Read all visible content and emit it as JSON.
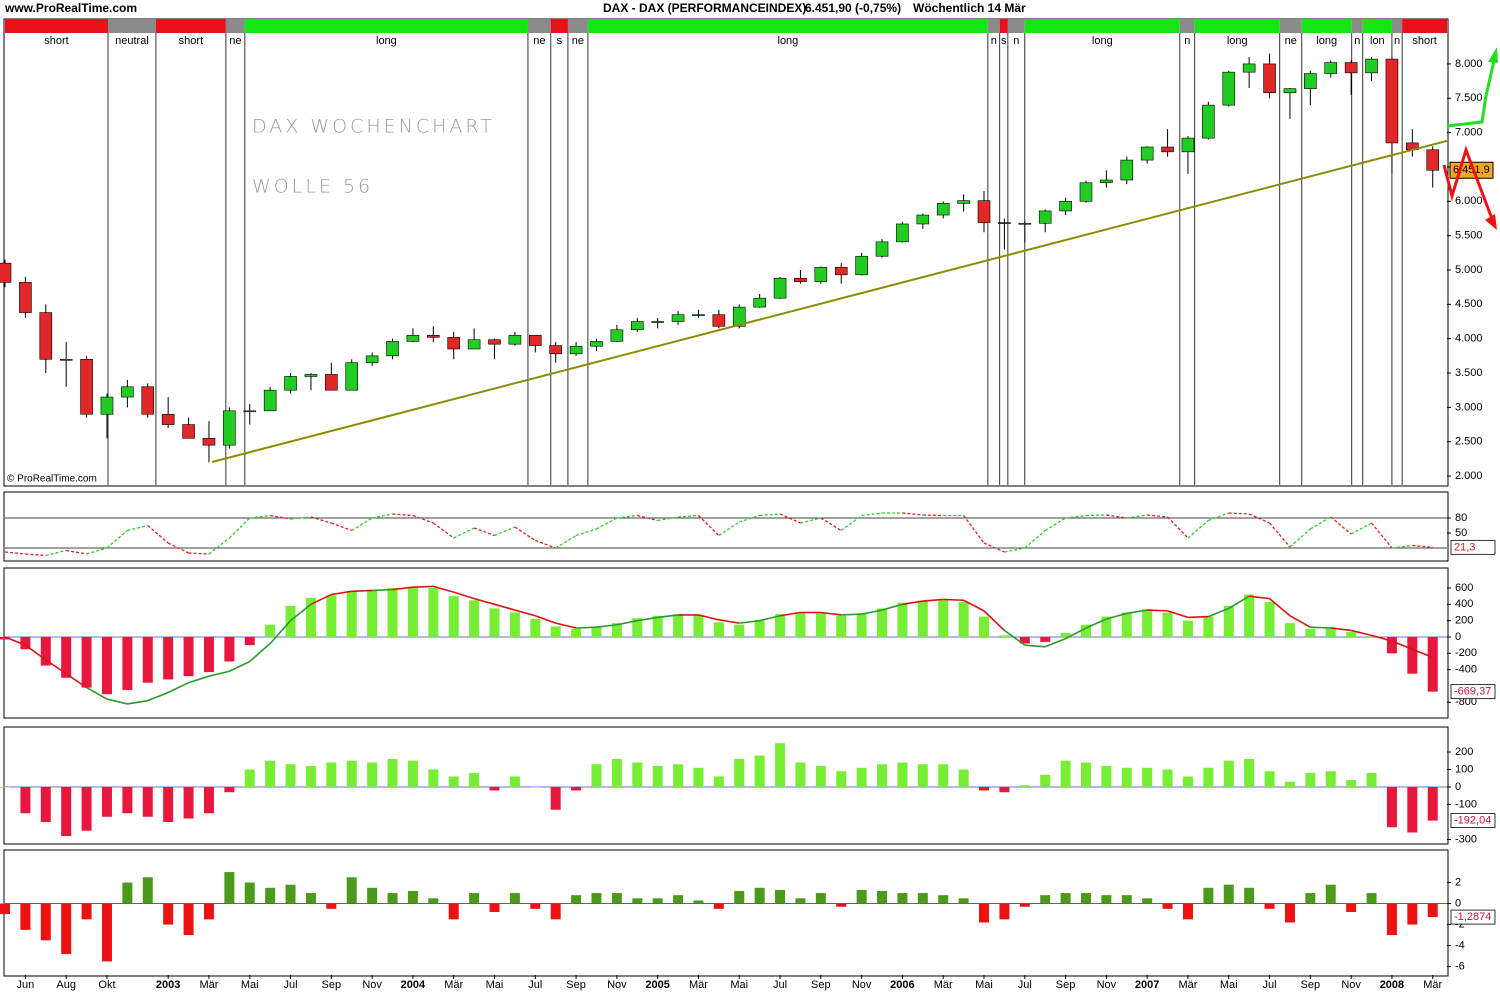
{
  "chart_data": [
    {
      "type": "candlestick",
      "source": "www.ProRealTime.com",
      "title": "DAX - DAX (PERFORMANCEINDEX)",
      "subtitle": "6.451,90 (-0,75%)",
      "period": "Wöchentlich  14 Mär",
      "watermark": "© ProRealTime.com",
      "annotations": [
        "DAX WOCHENCHART",
        "WOLLE 56"
      ],
      "up_color": "#22cc22",
      "down_color": "#e02828",
      "xlim": [
        0,
        70.7
      ],
      "xticks": [
        {
          "value": 1,
          "label": "Jun"
        },
        {
          "value": 3,
          "label": "Aug"
        },
        {
          "value": 5,
          "label": "Okt"
        },
        {
          "value": 8,
          "label": "2003"
        },
        {
          "value": 10,
          "label": "Mär"
        },
        {
          "value": 12,
          "label": "Mai"
        },
        {
          "value": 14,
          "label": "Jul"
        },
        {
          "value": 16,
          "label": "Sep"
        },
        {
          "value": 18,
          "label": "Nov"
        },
        {
          "value": 20,
          "label": "2004"
        },
        {
          "value": 22,
          "label": "Mär"
        },
        {
          "value": 24,
          "label": "Mai"
        },
        {
          "value": 26,
          "label": "Jul"
        },
        {
          "value": 28,
          "label": "Sep"
        },
        {
          "value": 30,
          "label": "Nov"
        },
        {
          "value": 32,
          "label": "2005"
        },
        {
          "value": 34,
          "label": "Mär"
        },
        {
          "value": 36,
          "label": "Mai"
        },
        {
          "value": 38,
          "label": "Jul"
        },
        {
          "value": 40,
          "label": "Sep"
        },
        {
          "value": 42,
          "label": "Nov"
        },
        {
          "value": 44,
          "label": "2006"
        },
        {
          "value": 46,
          "label": "Mär"
        },
        {
          "value": 48,
          "label": "Mai"
        },
        {
          "value": 50,
          "label": "Jul"
        },
        {
          "value": 52,
          "label": "Sep"
        },
        {
          "value": 54,
          "label": "Nov"
        },
        {
          "value": 56,
          "label": "2007"
        },
        {
          "value": 58,
          "label": "Mär"
        },
        {
          "value": 60,
          "label": "Mai"
        },
        {
          "value": 62,
          "label": "Jul"
        },
        {
          "value": 64,
          "label": "Sep"
        },
        {
          "value": 66,
          "label": "Nov"
        },
        {
          "value": 68,
          "label": "2008"
        },
        {
          "value": 70,
          "label": "Mär"
        }
      ],
      "ylim": [
        1870,
        8450
      ],
      "yticks": [
        {
          "value": 2000,
          "label": "2.000"
        },
        {
          "value": 2500,
          "label": "2.500"
        },
        {
          "value": 3000,
          "label": "3.000"
        },
        {
          "value": 3500,
          "label": "3.500"
        },
        {
          "value": 4000,
          "label": "4.000"
        },
        {
          "value": 4500,
          "label": "4.500"
        },
        {
          "value": 5000,
          "label": "5.000"
        },
        {
          "value": 5500,
          "label": "5.500"
        },
        {
          "value": 6000,
          "label": "6.000"
        },
        {
          "value": 6500,
          "label": "6.500"
        },
        {
          "value": 7000,
          "label": "7.000"
        },
        {
          "value": 7500,
          "label": "7.500"
        },
        {
          "value": 8000,
          "label": "8.000"
        }
      ],
      "last_value": {
        "value": 6451.9,
        "label": "6.451,9"
      },
      "trendline": {
        "x": [
          10.15,
          70.7
        ],
        "y": [
          2205,
          6880
        ],
        "color": "#8c8c00"
      },
      "regimes": [
        {
          "label": "short",
          "start": 0,
          "color": "#e8101a"
        },
        {
          "label": "neutral",
          "start": 5.05,
          "color": "#8a8a8a"
        },
        {
          "label": "short",
          "start": 7.4,
          "color": "#e8101a"
        },
        {
          "label": "ne",
          "start": 10.83,
          "color": "#8a8a8a"
        },
        {
          "label": "long",
          "start": 11.76,
          "color": "#14e614"
        },
        {
          "label": "ne",
          "start": 25.64,
          "color": "#8a8a8a"
        },
        {
          "label": "s",
          "start": 26.76,
          "color": "#e8101a"
        },
        {
          "label": "ne",
          "start": 27.6,
          "color": "#8a8a8a"
        },
        {
          "label": "long",
          "start": 28.58,
          "color": "#14e614"
        },
        {
          "label": "n",
          "start": 48.19,
          "color": "#8a8a8a"
        },
        {
          "label": "s",
          "start": 48.77,
          "color": "#e8101a"
        },
        {
          "label": "n",
          "start": 49.17,
          "color": "#8a8a8a"
        },
        {
          "label": "long",
          "start": 50,
          "color": "#14e614"
        },
        {
          "label": "n",
          "start": 57.6,
          "color": "#8a8a8a"
        },
        {
          "label": "long",
          "start": 58.33,
          "color": "#14e614"
        },
        {
          "label": "ne",
          "start": 62.5,
          "color": "#8a8a8a"
        },
        {
          "label": "long",
          "start": 63.58,
          "color": "#14e614"
        },
        {
          "label": "n",
          "start": 66.03,
          "color": "#8a8a8a"
        },
        {
          "label": "lon",
          "start": 66.57,
          "color": "#14e614"
        },
        {
          "label": "n",
          "start": 68,
          "color": "#8a8a8a"
        },
        {
          "label": "short",
          "start": 68.5,
          "color": "#e8101a"
        }
      ],
      "open": [
        5100,
        4820,
        4380,
        3700,
        3700,
        2900,
        3150,
        3300,
        2900,
        2750,
        2550,
        2450,
        2950,
        2950,
        3250,
        3450,
        3480,
        3250,
        3650,
        3750,
        3960,
        4050,
        4020,
        3850,
        3985,
        3920,
        4050,
        3900,
        3780,
        3890,
        3960,
        4130,
        4250,
        4250,
        4350,
        4350,
        4180,
        4460,
        4590,
        4880,
        4830,
        5040,
        4930,
        5200,
        5410,
        5670,
        5800,
        5970,
        6010,
        5690,
        5680,
        5680,
        5860,
        6000,
        6270,
        6310,
        6600,
        6790,
        6720,
        6920,
        7400,
        7880,
        8000,
        7580,
        7640,
        7860,
        8020,
        7870,
        8070,
        6850,
        6750
      ],
      "high": [
        5150,
        4900,
        4500,
        3950,
        3750,
        3200,
        3400,
        3350,
        3150,
        2850,
        2800,
        3000,
        3050,
        3300,
        3500,
        3500,
        3650,
        3700,
        3800,
        4000,
        4150,
        4180,
        4100,
        4150,
        4000,
        4100,
        4050,
        3950,
        3950,
        4000,
        4200,
        4300,
        4300,
        4400,
        4420,
        4420,
        4500,
        4650,
        4900,
        5000,
        5050,
        5100,
        5250,
        5450,
        5700,
        5820,
        6000,
        6100,
        6150,
        5750,
        5720,
        5880,
        6050,
        6300,
        6450,
        6650,
        6800,
        7050,
        6950,
        7450,
        7900,
        8100,
        8150,
        7650,
        7900,
        8050,
        8050,
        8100,
        8100,
        7050,
        6800
      ],
      "low": [
        4750,
        4300,
        3500,
        3300,
        2850,
        2550,
        3000,
        2850,
        2700,
        2550,
        2200,
        2400,
        2750,
        2950,
        3200,
        3250,
        3250,
        3250,
        3600,
        3700,
        3950,
        3950,
        3700,
        3850,
        3700,
        3900,
        3800,
        3650,
        3750,
        3820,
        3950,
        4100,
        4150,
        4200,
        4300,
        4150,
        4150,
        4450,
        4580,
        4800,
        4800,
        4800,
        4920,
        5180,
        5400,
        5600,
        5750,
        5850,
        5550,
        5300,
        5400,
        5550,
        5800,
        5980,
        6200,
        6250,
        6550,
        6650,
        6400,
        6900,
        7380,
        7650,
        7500,
        7200,
        7400,
        7800,
        7550,
        7750,
        6400,
        6650,
        6200
      ],
      "close": [
        4820,
        4380,
        3700,
        3700,
        2900,
        3150,
        3300,
        2900,
        2750,
        2550,
        2450,
        2950,
        2950,
        3250,
        3450,
        3480,
        3250,
        3650,
        3750,
        3960,
        4050,
        4020,
        3850,
        3985,
        3920,
        4050,
        3900,
        3780,
        3890,
        3960,
        4130,
        4250,
        4250,
        4350,
        4350,
        4180,
        4460,
        4590,
        4880,
        4830,
        5040,
        4930,
        5200,
        5410,
        5670,
        5800,
        5970,
        6010,
        5690,
        5680,
        5680,
        5860,
        6000,
        6270,
        6310,
        6600,
        6790,
        6720,
        6920,
        7400,
        7880,
        8000,
        7580,
        7640,
        7860,
        8020,
        7870,
        8070,
        6850,
        6750,
        6451.9
      ]
    },
    {
      "type": "line",
      "up_color": "#33cc33",
      "down_color": "#dd2222",
      "ylim": [
        -4,
        132
      ],
      "yticks": [
        50,
        80
      ],
      "levels": [
        20,
        80
      ],
      "last_value": {
        "value": 21.3,
        "label": "21,3"
      },
      "values": [
        12,
        8,
        5,
        15,
        8,
        20,
        55,
        65,
        30,
        10,
        8,
        40,
        80,
        85,
        78,
        82,
        70,
        55,
        80,
        88,
        85,
        70,
        40,
        60,
        45,
        62,
        35,
        20,
        45,
        58,
        80,
        85,
        75,
        82,
        85,
        45,
        72,
        85,
        88,
        70,
        80,
        55,
        85,
        90,
        90,
        86,
        85,
        85,
        30,
        12,
        20,
        55,
        80,
        85,
        86,
        80,
        86,
        82,
        40,
        75,
        90,
        88,
        70,
        22,
        58,
        82,
        48,
        70,
        20,
        25,
        21.3
      ]
    },
    {
      "type": "bar",
      "pos_color": "#77ee33",
      "neg_color": "#e8173d",
      "up_color": "#2a9a2a",
      "down_color": "#dd1111",
      "ylim": [
        -980,
        845
      ],
      "yticks": [
        600,
        400,
        200,
        0,
        -200,
        -400,
        -800
      ],
      "last_value": {
        "value": -669.37,
        "label": "-669,37"
      },
      "values": [
        -30,
        -150,
        -350,
        -500,
        -620,
        -700,
        -650,
        -560,
        -520,
        -480,
        -430,
        -300,
        -100,
        150,
        380,
        480,
        510,
        560,
        570,
        600,
        610,
        600,
        500,
        450,
        350,
        300,
        220,
        130,
        100,
        130,
        170,
        230,
        260,
        280,
        270,
        180,
        150,
        210,
        280,
        300,
        290,
        260,
        290,
        350,
        420,
        440,
        450,
        430,
        250,
        20,
        -80,
        -60,
        50,
        150,
        250,
        300,
        340,
        300,
        200,
        250,
        380,
        520,
        430,
        170,
        100,
        120,
        60,
        10,
        -200,
        -450,
        -669.37
      ],
      "signal": [
        0,
        -100,
        -280,
        -450,
        -620,
        -760,
        -820,
        -780,
        -680,
        -560,
        -480,
        -420,
        -300,
        -80,
        200,
        400,
        520,
        560,
        570,
        580,
        610,
        620,
        550,
        470,
        400,
        330,
        260,
        170,
        110,
        120,
        150,
        200,
        240,
        270,
        270,
        210,
        170,
        200,
        260,
        300,
        300,
        270,
        280,
        330,
        400,
        440,
        460,
        450,
        320,
        80,
        -100,
        -120,
        -20,
        110,
        220,
        290,
        330,
        320,
        240,
        250,
        350,
        500,
        470,
        260,
        120,
        110,
        80,
        20,
        -50,
        -150,
        -250
      ]
    },
    {
      "type": "bar",
      "pos_color": "#77ee33",
      "neg_color": "#e8173d",
      "ylim": [
        -320,
        343
      ],
      "yticks": [
        200,
        100,
        0,
        -100,
        -300
      ],
      "last_value": {
        "value": -192.04,
        "label": "-192,04"
      },
      "values": [
        0,
        -150,
        -200,
        -280,
        -250,
        -170,
        -150,
        -170,
        -200,
        -180,
        -150,
        -30,
        100,
        150,
        130,
        120,
        140,
        150,
        140,
        160,
        150,
        100,
        60,
        80,
        -20,
        60,
        0,
        -130,
        -20,
        130,
        160,
        140,
        120,
        130,
        110,
        60,
        160,
        180,
        250,
        140,
        120,
        90,
        110,
        130,
        140,
        130,
        130,
        100,
        -20,
        -30,
        10,
        70,
        150,
        140,
        120,
        110,
        110,
        100,
        60,
        110,
        150,
        160,
        90,
        30,
        80,
        90,
        40,
        80,
        -230,
        -260,
        -192.04
      ]
    },
    {
      "type": "bar",
      "pos_color": "#4c9a1c",
      "neg_color": "#ee1111",
      "ylim": [
        -6.8,
        5.1
      ],
      "yticks": [
        2,
        0,
        -2,
        -4,
        -6
      ],
      "last_value": {
        "value": -1.2874,
        "label": "-1,2874"
      },
      "values": [
        -1,
        -2.5,
        -3.5,
        -4.8,
        -1.5,
        -5.5,
        2,
        2.5,
        -2,
        -3,
        -1.5,
        3,
        2,
        1.5,
        1.8,
        1,
        -0.5,
        2.5,
        1.5,
        1,
        1.2,
        0.5,
        -1.5,
        1,
        -0.8,
        1,
        -0.5,
        -1.5,
        0.8,
        1,
        1,
        0.5,
        0.5,
        0.8,
        0.3,
        -0.5,
        1.2,
        1.5,
        1.3,
        0.5,
        1,
        -0.3,
        1.3,
        1.2,
        1,
        1,
        0.8,
        0.5,
        -1.8,
        -1.5,
        -0.3,
        0.8,
        1,
        1,
        0.8,
        0.8,
        0.5,
        -0.5,
        -1.5,
        1.5,
        1.8,
        1.5,
        -0.5,
        -1.8,
        1,
        1.8,
        -0.8,
        1,
        -3,
        -2,
        -1.2874
      ]
    }
  ]
}
